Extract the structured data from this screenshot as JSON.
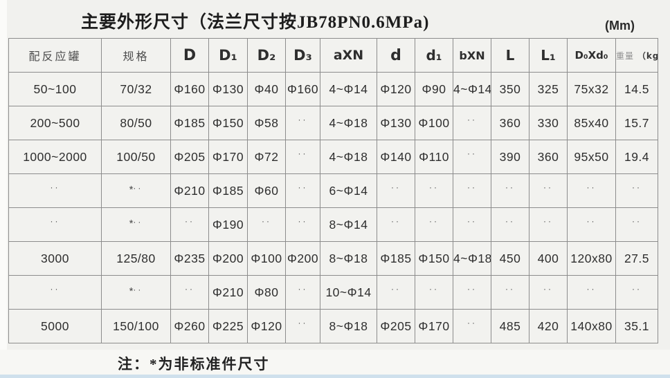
{
  "title": "主要外形尺寸（法兰尺寸按JB78PN0.6MPa)",
  "unit": "(Mm)",
  "note": "注：*为非标准件尺寸",
  "table": {
    "headers": [
      "配反应罐",
      "规格",
      "D",
      "D₁",
      "D₂",
      "D₃",
      "aXN",
      "d",
      "d₁",
      "bXN",
      "L",
      "L₁",
      "D₀Xd₀",
      {
        "label": "重量",
        "unit": "（kg)"
      }
    ],
    "rows": [
      {
        "cells": [
          "50~100",
          "70/32",
          "Φ160",
          "Φ130",
          "Φ40",
          "Φ160",
          "4~Φ14",
          "Φ120",
          "Φ90",
          "4~Φ14",
          "350",
          "325",
          "75x32",
          "14.5"
        ]
      },
      {
        "cells": [
          "200~500",
          "80/50",
          "Φ185",
          "Φ150",
          "Φ58",
          "··",
          "4~Φ18",
          "Φ130",
          "Φ100",
          "··",
          "360",
          "330",
          "85x40",
          "15.7"
        ]
      },
      {
        "cells": [
          "1000~2000",
          "100/50",
          "Φ205",
          "Φ170",
          "Φ72",
          "··",
          "4~Φ18",
          "Φ140",
          "Φ110",
          "··",
          "390",
          "360",
          "95x50",
          "19.4"
        ]
      },
      {
        "cells": [
          "··",
          "*··",
          "Φ210",
          "Φ185",
          "Φ60",
          "··",
          "6~Φ14",
          "··",
          "··",
          "··",
          "··",
          "··",
          "··",
          "··"
        ]
      },
      {
        "cells": [
          "··",
          "*··",
          "··",
          "Φ190",
          "··",
          "··",
          "8~Φ14",
          "··",
          "··",
          "··",
          "··",
          "··",
          "··",
          "··"
        ]
      },
      {
        "cells": [
          "3000",
          "125/80",
          "Φ235",
          "Φ200",
          "Φ100",
          "Φ200",
          "8~Φ18",
          "Φ185",
          "Φ150",
          "4~Φ18",
          "450",
          "400",
          "120x80",
          "27.5"
        ]
      },
      {
        "cells": [
          "··",
          "*··",
          "··",
          "Φ210",
          "Φ80",
          "··",
          "10~Φ14",
          "··",
          "··",
          "··",
          "··",
          "··",
          "··",
          "··"
        ]
      },
      {
        "cells": [
          "5000",
          "150/100",
          "Φ260",
          "Φ225",
          "Φ120",
          "··",
          "8~Φ18",
          "Φ205",
          "Φ170",
          "··",
          "485",
          "420",
          "140x80",
          "35.1"
        ]
      }
    ]
  }
}
